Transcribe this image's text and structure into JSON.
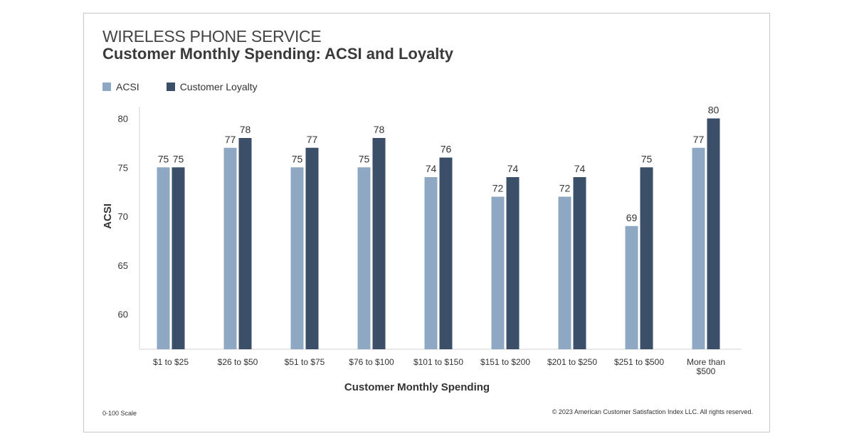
{
  "header": {
    "supertitle": "WIRELESS PHONE SERVICE"
  },
  "footer": {
    "scale_note": "0-100 Scale",
    "copyright": "© 2023 American Customer Satisfaction Index LLC. All rights reserved."
  },
  "colors": {
    "acsi": "#8ea8c4",
    "loyalty": "#3b4f69"
  },
  "chart_data": {
    "type": "bar",
    "title": "Customer Monthly Spending: ACSI and Loyalty",
    "xlabel": "Customer Monthly Spending",
    "ylabel": "ACSI",
    "ylim": [
      56.4,
      81.2
    ],
    "yticks": [
      60,
      65,
      70,
      75,
      80
    ],
    "grid": false,
    "legend": "top-left",
    "categories": [
      "$1 to $25",
      "$26 to $50",
      "$51 to $75",
      "$76 to $100",
      "$101 to $150",
      "$151 to $200",
      "$201 to $250",
      "$251 to $500",
      "More than $500"
    ],
    "series": [
      {
        "name": "ACSI",
        "values": [
          75,
          77,
          75,
          75,
          74,
          72,
          72,
          69,
          77
        ]
      },
      {
        "name": "Customer Loyalty",
        "values": [
          75,
          78,
          77,
          78,
          76,
          74,
          74,
          75,
          80
        ]
      }
    ]
  }
}
